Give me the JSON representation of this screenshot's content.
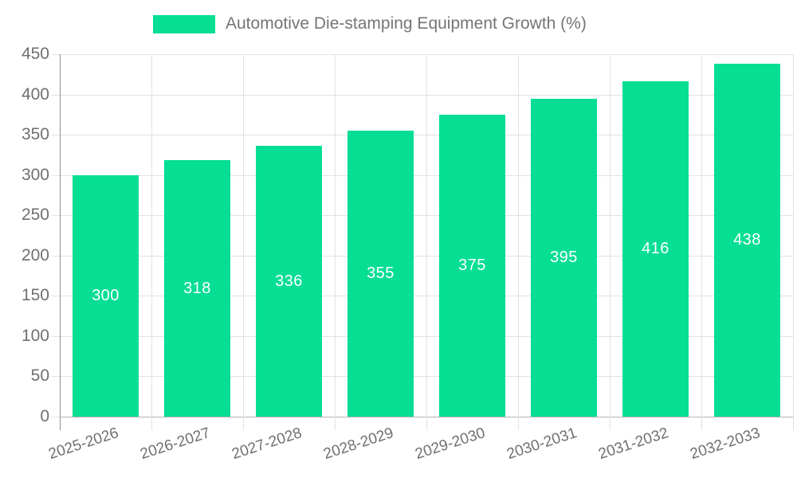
{
  "chart_data": {
    "type": "bar",
    "title": "",
    "legend": "Automotive Die-stamping Equipment Growth (%)",
    "legend_position": "top",
    "categories": [
      "2025-2026",
      "2026-2027",
      "2027-2028",
      "2028-2029",
      "2029-2030",
      "2030-2031",
      "2031-2032",
      "2032-2033"
    ],
    "values": [
      300,
      318,
      336,
      355,
      375,
      395,
      416,
      438
    ],
    "xlabel": "",
    "ylabel": "",
    "ylim": [
      0,
      450
    ],
    "yticks": [
      0,
      50,
      100,
      150,
      200,
      250,
      300,
      350,
      400,
      450
    ],
    "grid": true,
    "colors": {
      "bar": "#05DE93",
      "value_label": "#ffffff",
      "text": "#707070",
      "legend_text": "#757575",
      "gridline": "#e2e2e2",
      "axis_line": "#919191",
      "baseline": "#b3b3b3"
    }
  }
}
